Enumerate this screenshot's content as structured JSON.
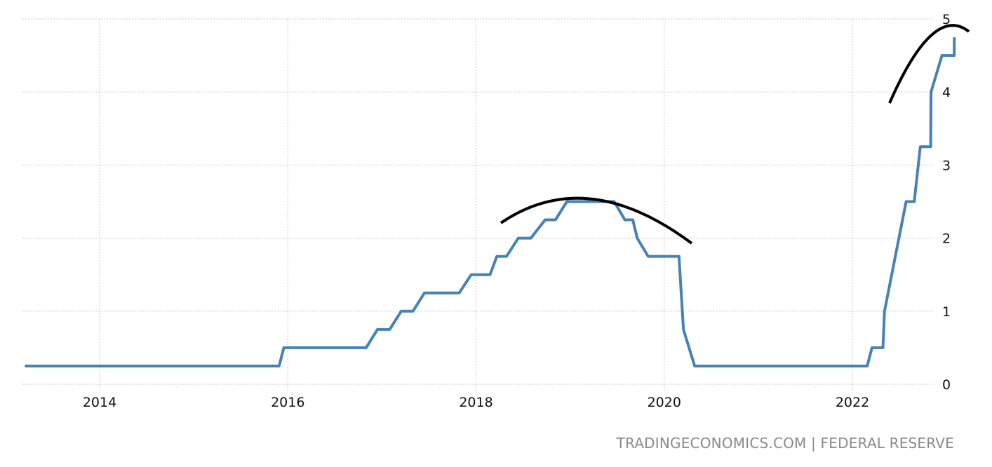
{
  "chart_data": {
    "type": "line",
    "title": "",
    "xlabel": "",
    "ylabel": "",
    "x_ticks": [
      "2014",
      "2016",
      "2018",
      "2020",
      "2022"
    ],
    "y_ticks": [
      "0",
      "1",
      "2",
      "3",
      "4",
      "5"
    ],
    "ylim": [
      0,
      5
    ],
    "xlim": [
      "2013-03",
      "2023-03"
    ],
    "y_axis_side": "right",
    "grid": true,
    "line_color": "#4682b4",
    "annotation_color": "#000000",
    "series": [
      {
        "points": [
          [
            "2013-03-15",
            0.25
          ],
          [
            "2015-11-28",
            0.25
          ],
          [
            "2015-12-16",
            0.5
          ],
          [
            "2016-10-31",
            0.5
          ],
          [
            "2016-12-14",
            0.75
          ],
          [
            "2017-01-31",
            0.75
          ],
          [
            "2017-03-15",
            1.0
          ],
          [
            "2017-04-30",
            1.0
          ],
          [
            "2017-06-14",
            1.25
          ],
          [
            "2017-10-27",
            1.25
          ],
          [
            "2017-12-13",
            1.5
          ],
          [
            "2018-02-25",
            1.5
          ],
          [
            "2018-03-21",
            1.75
          ],
          [
            "2018-04-28",
            1.75
          ],
          [
            "2018-06-13",
            2.0
          ],
          [
            "2018-07-31",
            2.0
          ],
          [
            "2018-09-26",
            2.25
          ],
          [
            "2018-11-05",
            2.25
          ],
          [
            "2018-12-19",
            2.5
          ],
          [
            "2019-06-20",
            2.5
          ],
          [
            "2019-07-31",
            2.25
          ],
          [
            "2019-09-01",
            2.25
          ],
          [
            "2019-09-18",
            2.0
          ],
          [
            "2019-10-30",
            1.75
          ],
          [
            "2020-02-28",
            1.75
          ],
          [
            "2020-03-15",
            0.75
          ],
          [
            "2020-04-28",
            0.25
          ],
          [
            "2022-02-28",
            0.25
          ],
          [
            "2022-03-16",
            0.5
          ],
          [
            "2022-04-28",
            0.5
          ],
          [
            "2022-05-04",
            1.0
          ],
          [
            "2022-07-27",
            2.5
          ],
          [
            "2022-08-28",
            2.5
          ],
          [
            "2022-09-21",
            3.25
          ],
          [
            "2022-10-31",
            3.25
          ],
          [
            "2022-11-02",
            4.0
          ],
          [
            "2022-12-14",
            4.5
          ],
          [
            "2023-01-31",
            4.5
          ],
          [
            "2023-02-01",
            4.75
          ]
        ]
      }
    ]
  },
  "footer": {
    "source": "TRADINGECONOMICS.COM | FEDERAL RESERVE"
  }
}
